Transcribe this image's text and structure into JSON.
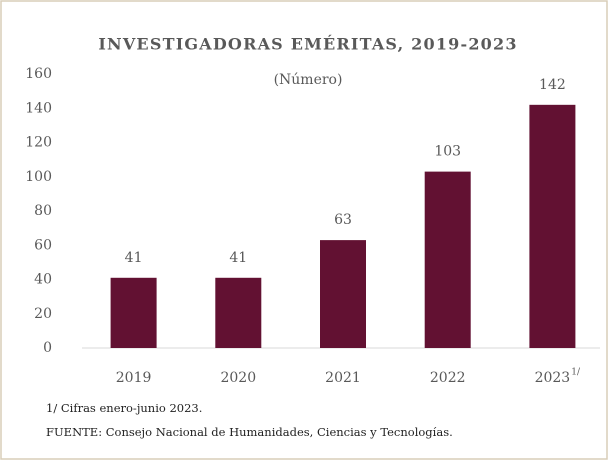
{
  "chart_data": {
    "type": "bar",
    "title": "INVESTIGADORAS EMÉRITAS, 2019-2023",
    "subtitle": "(Número)",
    "categories": [
      "2019",
      "2020",
      "2021",
      "2022",
      "2023"
    ],
    "category_superscripts": [
      null,
      null,
      null,
      null,
      "1/"
    ],
    "values": [
      41,
      41,
      63,
      103,
      142
    ],
    "color": "#621132",
    "ylim": [
      0,
      160
    ],
    "yticks": [
      0,
      20,
      40,
      60,
      80,
      100,
      120,
      140,
      160
    ],
    "grid": false,
    "notes": [
      "1/ Cifras enero-junio 2023.",
      "FUENTE: Consejo Nacional de Humanidades, Ciencias y Tecnologías."
    ]
  }
}
